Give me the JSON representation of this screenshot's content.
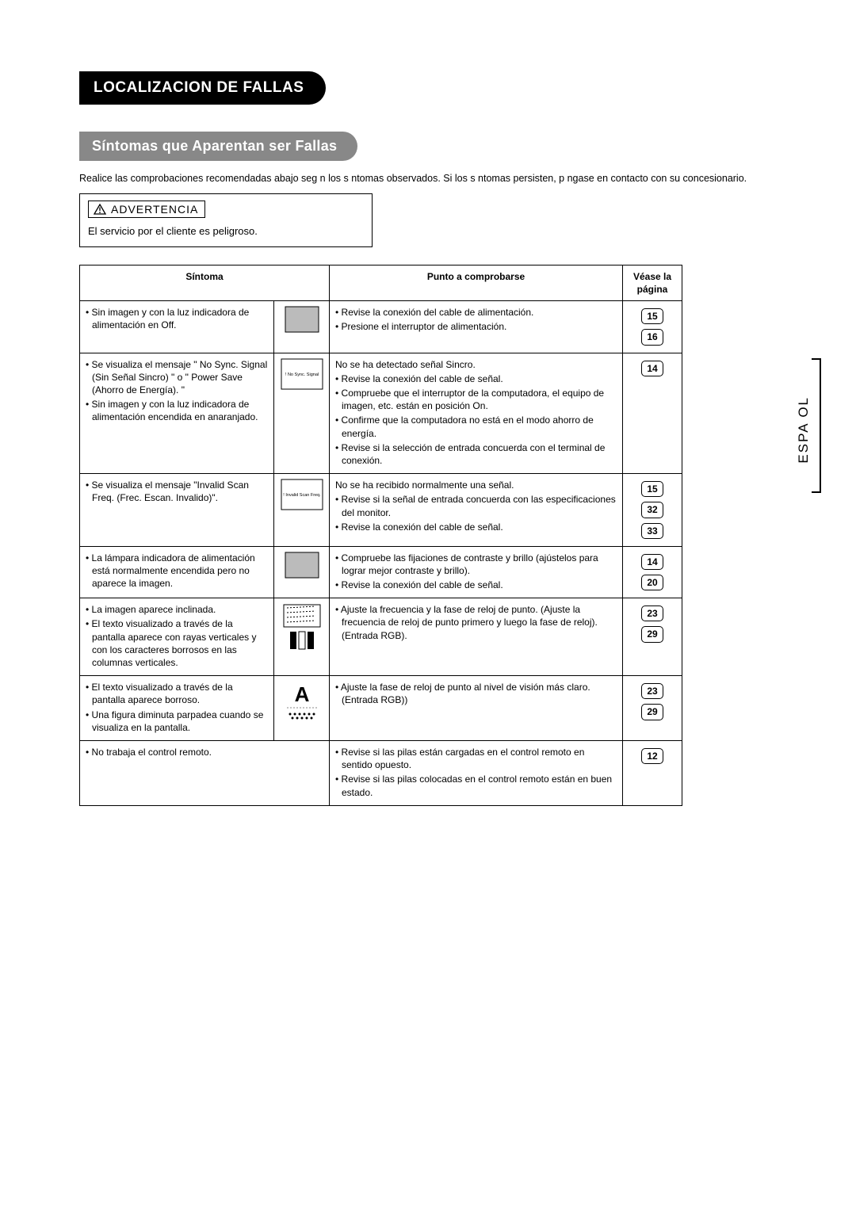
{
  "header": {
    "title_black": "LOCALIZACION DE FALLAS",
    "title_gray": "Síntomas que Aparentan ser Fallas"
  },
  "intro": "Realice las comprobaciones recomendadas abajo seg n los s ntomas observados. Si los s ntomas persisten, p ngase en contacto con su concesionario.",
  "advertencia": {
    "label": "ADVERTENCIA",
    "text": "El servicio por el cliente es peligroso."
  },
  "side_tab": "ESPA  OL",
  "table": {
    "headers": {
      "symptom": "Síntoma",
      "check": "Punto a comprobarse",
      "page": "Véase la página"
    },
    "rows": [
      {
        "icon": "blank-screen",
        "symptoms": [
          "Sin imagen y con la luz indicadora de alimentación en Off."
        ],
        "check_intro": "",
        "checks": [
          "Revise la conexión del cable de alimentación.",
          "Presione el interruptor de alimentación."
        ],
        "pages": [
          "15",
          "16"
        ]
      },
      {
        "icon": "no-sync",
        "icon_text": "! No Sync. Signal",
        "symptoms": [
          "Se visualiza el mensaje \" No Sync. Signal (Sin Señal Sincro) \" o \" Power Save (Ahorro de Energía). \"",
          "Sin imagen y con la luz indicadora de alimentación encendida en anaranjado."
        ],
        "check_intro": "No se ha detectado señal Sincro.",
        "checks": [
          "Revise la conexión del cable de señal.",
          "Compruebe que el interruptor de la computadora, el equipo de imagen, etc. están en posición On.",
          "Confirme que la computadora no está en el modo ahorro de energía.",
          "Revise si la selección de entrada concuerda con el terminal de conexión."
        ],
        "pages": [
          "14"
        ]
      },
      {
        "icon": "invalid-scan",
        "icon_text": "! Invalid Scan Freq.",
        "symptoms": [
          "Se visualiza el mensaje \"Invalid Scan Freq. (Frec. Escan. Invalido)\"."
        ],
        "check_intro": "No se ha recibido normalmente una señal.",
        "checks": [
          "Revise si la señal de entrada concuerda con las especificaciones del monitor.",
          "Revise la conexión del cable de señal."
        ],
        "pages": [
          "15",
          "32",
          "33"
        ]
      },
      {
        "icon": "blank-screen",
        "symptoms": [
          "La lámpara indicadora de alimentación está normalmente encendida pero no aparece la imagen."
        ],
        "check_intro": "",
        "checks": [
          "Compruebe las fijaciones de contraste y brillo (ajústelos para lograr mejor contraste y brillo).",
          "Revise la conexión del cable de señal."
        ],
        "pages": [
          "14",
          "20"
        ]
      },
      {
        "icon": "tilted",
        "symptoms": [
          "La imagen aparece inclinada.",
          "El texto visualizado a través de la pantalla aparece con rayas verticales y con los caracteres borrosos en las columnas verticales."
        ],
        "check_intro": "",
        "checks": [
          "Ajuste  la frecuencia y la fase de reloj de punto. (Ajuste la frecuencia de reloj de punto primero y luego la fase de reloj). (Entrada RGB)."
        ],
        "pages": [
          "23",
          "29"
        ]
      },
      {
        "icon": "letter-a",
        "icon_text": "A",
        "symptoms": [
          "El texto visualizado a través de la pantalla aparece borroso.",
          "Una figura diminuta parpadea cuando se visualiza en la pantalla."
        ],
        "check_intro": "",
        "checks": [
          "Ajuste la fase de reloj de punto al nivel de visión más claro. (Entrada RGB))"
        ],
        "pages": [
          "23",
          "29"
        ]
      },
      {
        "icon": "none",
        "symptoms": [
          "No trabaja el control remoto."
        ],
        "check_intro": "",
        "checks": [
          "Revise si las pilas están cargadas en el control remoto en sentido opuesto.",
          "Revise si las pilas colocadas en el control remoto están en buen estado."
        ],
        "pages": [
          "12"
        ]
      }
    ]
  }
}
